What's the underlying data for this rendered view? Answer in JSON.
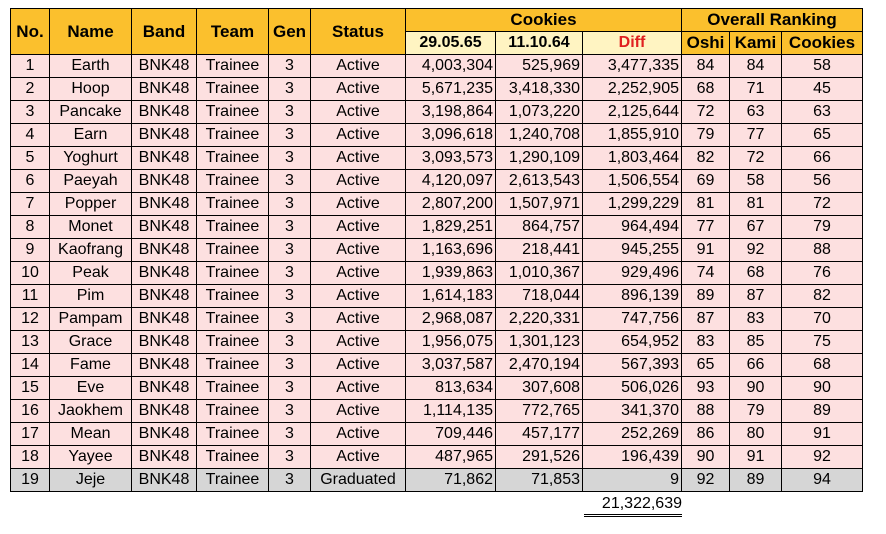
{
  "headers": {
    "no": "No.",
    "name": "Name",
    "band": "Band",
    "team": "Team",
    "gen": "Gen",
    "status": "Status",
    "cookies": "Cookies",
    "date1": "29.05.65",
    "date2": "11.10.64",
    "diff": "Diff",
    "overall": "Overall Ranking",
    "oshi": "Oshi",
    "kami": "Kami",
    "cookies_rank": "Cookies"
  },
  "rows": [
    {
      "no": "1",
      "name": "Earth",
      "band": "BNK48",
      "team": "Trainee",
      "gen": "3",
      "status": "Active",
      "d1": "4,003,304",
      "d2": "525,969",
      "diff": "3,477,335",
      "oshi": "84",
      "kami": "84",
      "cookies": "58"
    },
    {
      "no": "2",
      "name": "Hoop",
      "band": "BNK48",
      "team": "Trainee",
      "gen": "3",
      "status": "Active",
      "d1": "5,671,235",
      "d2": "3,418,330",
      "diff": "2,252,905",
      "oshi": "68",
      "kami": "71",
      "cookies": "45"
    },
    {
      "no": "3",
      "name": "Pancake",
      "band": "BNK48",
      "team": "Trainee",
      "gen": "3",
      "status": "Active",
      "d1": "3,198,864",
      "d2": "1,073,220",
      "diff": "2,125,644",
      "oshi": "72",
      "kami": "63",
      "cookies": "63"
    },
    {
      "no": "4",
      "name": "Earn",
      "band": "BNK48",
      "team": "Trainee",
      "gen": "3",
      "status": "Active",
      "d1": "3,096,618",
      "d2": "1,240,708",
      "diff": "1,855,910",
      "oshi": "79",
      "kami": "77",
      "cookies": "65"
    },
    {
      "no": "5",
      "name": "Yoghurt",
      "band": "BNK48",
      "team": "Trainee",
      "gen": "3",
      "status": "Active",
      "d1": "3,093,573",
      "d2": "1,290,109",
      "diff": "1,803,464",
      "oshi": "82",
      "kami": "72",
      "cookies": "66"
    },
    {
      "no": "6",
      "name": "Paeyah",
      "band": "BNK48",
      "team": "Trainee",
      "gen": "3",
      "status": "Active",
      "d1": "4,120,097",
      "d2": "2,613,543",
      "diff": "1,506,554",
      "oshi": "69",
      "kami": "58",
      "cookies": "56"
    },
    {
      "no": "7",
      "name": "Popper",
      "band": "BNK48",
      "team": "Trainee",
      "gen": "3",
      "status": "Active",
      "d1": "2,807,200",
      "d2": "1,507,971",
      "diff": "1,299,229",
      "oshi": "81",
      "kami": "81",
      "cookies": "72"
    },
    {
      "no": "8",
      "name": "Monet",
      "band": "BNK48",
      "team": "Trainee",
      "gen": "3",
      "status": "Active",
      "d1": "1,829,251",
      "d2": "864,757",
      "diff": "964,494",
      "oshi": "77",
      "kami": "67",
      "cookies": "79"
    },
    {
      "no": "9",
      "name": "Kaofrang",
      "band": "BNK48",
      "team": "Trainee",
      "gen": "3",
      "status": "Active",
      "d1": "1,163,696",
      "d2": "218,441",
      "diff": "945,255",
      "oshi": "91",
      "kami": "92",
      "cookies": "88"
    },
    {
      "no": "10",
      "name": "Peak",
      "band": "BNK48",
      "team": "Trainee",
      "gen": "3",
      "status": "Active",
      "d1": "1,939,863",
      "d2": "1,010,367",
      "diff": "929,496",
      "oshi": "74",
      "kami": "68",
      "cookies": "76"
    },
    {
      "no": "11",
      "name": "Pim",
      "band": "BNK48",
      "team": "Trainee",
      "gen": "3",
      "status": "Active",
      "d1": "1,614,183",
      "d2": "718,044",
      "diff": "896,139",
      "oshi": "89",
      "kami": "87",
      "cookies": "82"
    },
    {
      "no": "12",
      "name": "Pampam",
      "band": "BNK48",
      "team": "Trainee",
      "gen": "3",
      "status": "Active",
      "d1": "2,968,087",
      "d2": "2,220,331",
      "diff": "747,756",
      "oshi": "87",
      "kami": "83",
      "cookies": "70"
    },
    {
      "no": "13",
      "name": "Grace",
      "band": "BNK48",
      "team": "Trainee",
      "gen": "3",
      "status": "Active",
      "d1": "1,956,075",
      "d2": "1,301,123",
      "diff": "654,952",
      "oshi": "83",
      "kami": "85",
      "cookies": "75"
    },
    {
      "no": "14",
      "name": "Fame",
      "band": "BNK48",
      "team": "Trainee",
      "gen": "3",
      "status": "Active",
      "d1": "3,037,587",
      "d2": "2,470,194",
      "diff": "567,393",
      "oshi": "65",
      "kami": "66",
      "cookies": "68"
    },
    {
      "no": "15",
      "name": "Eve",
      "band": "BNK48",
      "team": "Trainee",
      "gen": "3",
      "status": "Active",
      "d1": "813,634",
      "d2": "307,608",
      "diff": "506,026",
      "oshi": "93",
      "kami": "90",
      "cookies": "90"
    },
    {
      "no": "16",
      "name": "Jaokhem",
      "band": "BNK48",
      "team": "Trainee",
      "gen": "3",
      "status": "Active",
      "d1": "1,114,135",
      "d2": "772,765",
      "diff": "341,370",
      "oshi": "88",
      "kami": "79",
      "cookies": "89"
    },
    {
      "no": "17",
      "name": "Mean",
      "band": "BNK48",
      "team": "Trainee",
      "gen": "3",
      "status": "Active",
      "d1": "709,446",
      "d2": "457,177",
      "diff": "252,269",
      "oshi": "86",
      "kami": "80",
      "cookies": "91"
    },
    {
      "no": "18",
      "name": "Yayee",
      "band": "BNK48",
      "team": "Trainee",
      "gen": "3",
      "status": "Active",
      "d1": "487,965",
      "d2": "291,526",
      "diff": "196,439",
      "oshi": "90",
      "kami": "91",
      "cookies": "92"
    },
    {
      "no": "19",
      "name": "Jeje",
      "band": "BNK48",
      "team": "Trainee",
      "gen": "3",
      "status": "Graduated",
      "d1": "71,862",
      "d2": "71,853",
      "diff": "9",
      "oshi": "92",
      "kami": "89",
      "cookies": "94"
    }
  ],
  "total_diff": "21,322,639",
  "colors": {
    "header": "#fbc02d",
    "date_header": "#fff4c2",
    "diff_text": "#e02020",
    "active_row": "#fde0e0",
    "graduated_row": "#d6d6d6"
  }
}
